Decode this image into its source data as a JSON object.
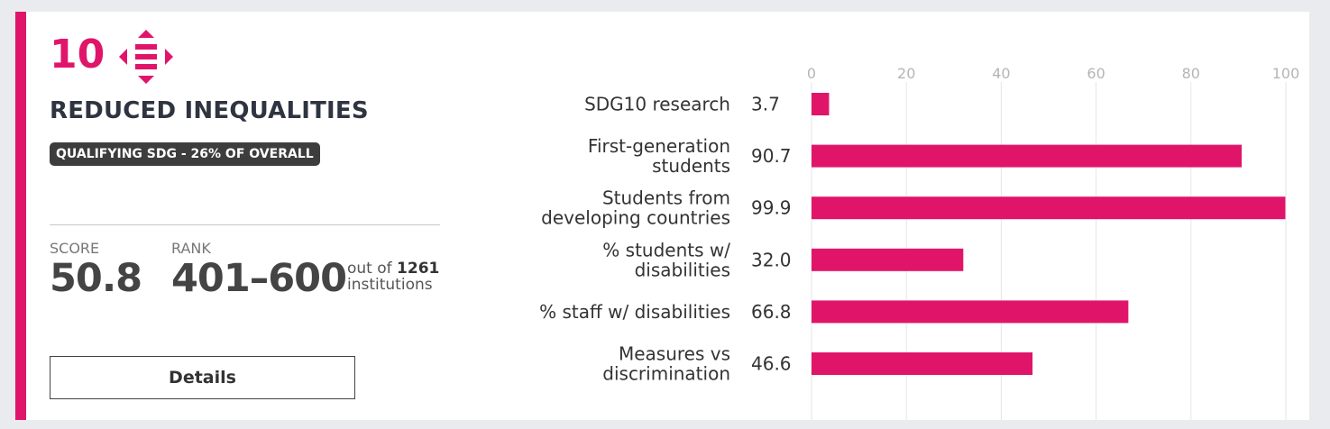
{
  "sdg": {
    "number": "10",
    "title": "REDUCED INEQUALITIES",
    "badge": "QUALIFYING SDG - 26% OF OVERALL",
    "accent_color": "#e0156a",
    "icon": "reduced-inequalities-icon"
  },
  "score": {
    "label": "SCORE",
    "value": "50.8"
  },
  "rank": {
    "label": "RANK",
    "value": "401–600",
    "out_of_prefix": "out of",
    "out_of_count": "1261",
    "out_of_suffix": "institutions"
  },
  "details_button": {
    "label": "Details"
  },
  "chart_data": {
    "type": "bar",
    "orientation": "horizontal",
    "xlim": [
      0,
      100
    ],
    "x_ticks": [
      0,
      20,
      40,
      60,
      80,
      100
    ],
    "grid": true,
    "bar_color": "#e0156a",
    "categories": [
      [
        "SDG10 research"
      ],
      [
        "First-generation",
        "students"
      ],
      [
        "Students from",
        "developing countries"
      ],
      [
        "% students w/",
        "disabilities"
      ],
      [
        "% staff w/ disabilities"
      ],
      [
        "Measures vs",
        "discrimination"
      ]
    ],
    "values": [
      3.7,
      90.7,
      99.9,
      32.0,
      66.8,
      46.6
    ],
    "value_labels": [
      "3.7",
      "90.7",
      "99.9",
      "32.0",
      "66.8",
      "46.6"
    ]
  }
}
